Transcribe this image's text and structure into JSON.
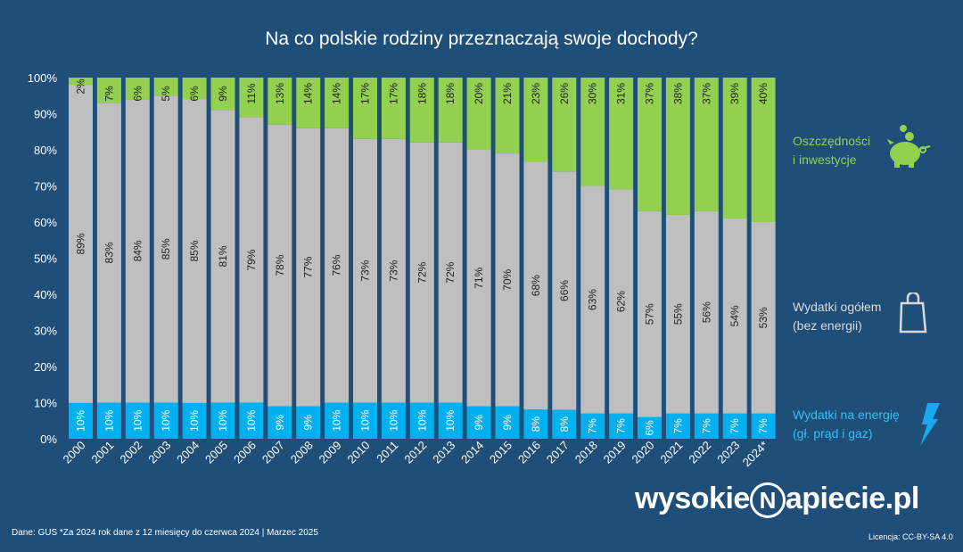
{
  "title": "Na co polskie rodziny przeznaczają swoje dochody?",
  "chart_data": {
    "type": "bar",
    "stacked": true,
    "title": "Na co polskie rodziny przeznaczają swoje dochody?",
    "categories": [
      "2000",
      "2001",
      "2002",
      "2003",
      "2004",
      "2005",
      "2006",
      "2007",
      "2008",
      "2009",
      "2010",
      "2011",
      "2012",
      "2013",
      "2014",
      "2015",
      "2016",
      "2017",
      "2018",
      "2019",
      "2020",
      "2021",
      "2022",
      "2023",
      "2024*"
    ],
    "ylim": [
      0,
      100
    ],
    "yticks": [
      "0%",
      "10%",
      "20%",
      "30%",
      "40%",
      "50%",
      "60%",
      "70%",
      "80%",
      "90%",
      "100%"
    ],
    "grid": false,
    "legend_placement": "right",
    "series": [
      {
        "name": "Wydatki na energię (gł. prąd i gaz)",
        "color": "#00b0f0",
        "values": [
          10,
          10,
          10,
          10,
          10,
          10,
          10,
          9,
          9,
          10,
          10,
          10,
          10,
          10,
          9,
          9,
          8,
          8,
          7,
          7,
          6,
          7,
          7,
          7,
          7
        ]
      },
      {
        "name": "Wydatki ogółem (bez energii)",
        "color": "#bfbfbf",
        "values": [
          89,
          83,
          84,
          85,
          85,
          81,
          79,
          78,
          77,
          76,
          73,
          73,
          72,
          72,
          71,
          70,
          68,
          66,
          63,
          62,
          57,
          55,
          56,
          54,
          53
        ]
      },
      {
        "name": "Oszczędności i inwestycje",
        "color": "#92d050",
        "values": [
          2,
          7,
          6,
          5,
          6,
          9,
          11,
          13,
          14,
          14,
          17,
          17,
          18,
          18,
          20,
          21,
          23,
          26,
          30,
          31,
          37,
          38,
          37,
          39,
          40
        ]
      }
    ]
  },
  "legend": {
    "savings": [
      "Oszczędności",
      "i inwestycje"
    ],
    "expenses": [
      "Wydatki ogółem",
      "(bez energii)"
    ],
    "energy": [
      "Wydatki na energię",
      "(gł. prąd i gaz)"
    ],
    "icons": [
      "piggy-bank-icon",
      "shopping-bag-icon",
      "lightning-icon"
    ]
  },
  "footer": {
    "source": "Dane: GUS  *Za 2024 rok dane z 12 miesięcy do czerwca 2024   |  Marzec 2025",
    "license": "Licencja: CC-BY-SA 4.0",
    "logo": "wysokieNapiecie.pl"
  }
}
